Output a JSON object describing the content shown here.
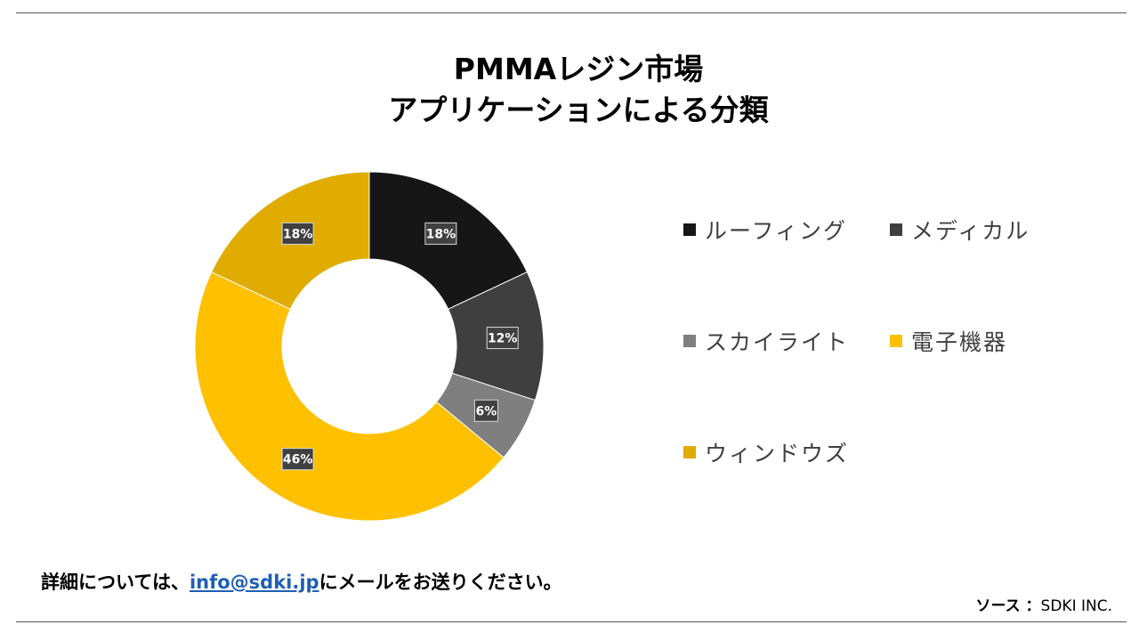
{
  "title": {
    "line1": "PMMAレジン市場",
    "line2": "アプリケーションによる分類"
  },
  "chart_data": {
    "type": "pie",
    "subtype": "donut",
    "categories": [
      "ルーフィング",
      "メディカル",
      "スカイライト",
      "電子機器",
      "ウィンドウズ"
    ],
    "values": [
      18,
      12,
      6,
      46,
      18
    ],
    "labels": [
      "18%",
      "12%",
      "6%",
      "46%",
      "18%"
    ],
    "colors": [
      "#161616",
      "#3f3f3f",
      "#7f7f7f",
      "#ffc000",
      "#e0ac00"
    ],
    "legend_position": "right"
  },
  "footer": {
    "prefix": "詳細については、",
    "email": "info@sdki.jp",
    "suffix": "にメールをお送りください。"
  },
  "source": {
    "label": "ソース ：",
    "value": "SDKI INC."
  }
}
